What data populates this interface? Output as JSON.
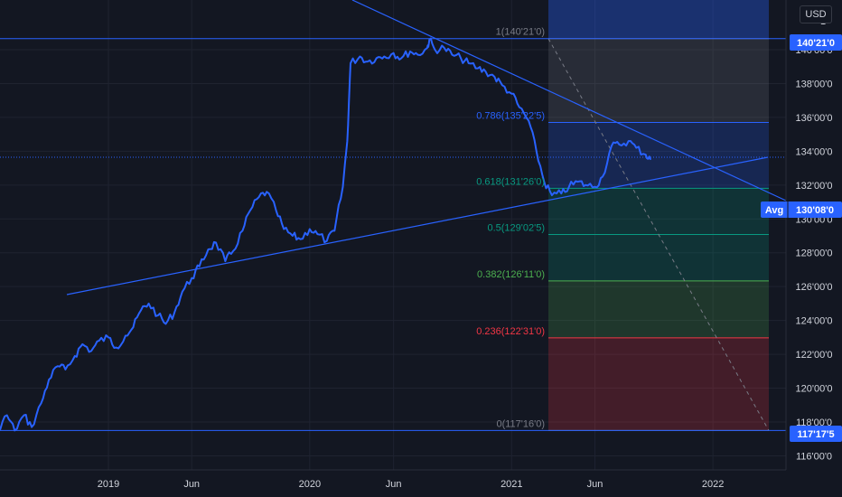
{
  "currency_button": "USD",
  "axis_top_partial": "1",
  "badges": {
    "top_price": "140'21'0",
    "avg_label": "Avg",
    "avg_price": "130'08'0",
    "bottom_price": "117'17'5"
  },
  "colors": {
    "background": "#131722",
    "price_line": "#2962ff",
    "trendline": "#2962ff",
    "badge": "#2962ff",
    "grid": "#2a2e39"
  },
  "chart_data": {
    "type": "line",
    "title": "",
    "xlabel": "",
    "ylabel": "",
    "x_ticks": [
      "2019",
      "Jun",
      "2020",
      "Jun",
      "2021",
      "Jun",
      "2022"
    ],
    "y_ticks": [
      "140'00'0",
      "138'00'0",
      "136'00'0",
      "134'00'0",
      "132'00'0",
      "130'00'0",
      "128'00'0",
      "126'00'0",
      "124'00'0",
      "122'00'0",
      "120'00'0",
      "118'00'0",
      "116'00'0"
    ],
    "ylim": [
      115.7,
      143.5
    ],
    "xlim": [
      "2018-01-01",
      "2022-05-01"
    ],
    "grid": true,
    "fib_levels": [
      {
        "label": "1(140'21'0)",
        "ratio": 1,
        "value": 140.656
      },
      {
        "label": "0.786(135'22'5)",
        "ratio": 0.786,
        "value": 135.7
      },
      {
        "label": "0.618(131'26'0)",
        "ratio": 0.618,
        "value": 131.81
      },
      {
        "label": "0.5(129'02'5)",
        "ratio": 0.5,
        "value": 129.08
      },
      {
        "label": "0.382(126'11'0)",
        "ratio": 0.382,
        "value": 126.34
      },
      {
        "label": "0.236(122'31'0)",
        "ratio": 0.236,
        "value": 122.97
      },
      {
        "label": "0(117'16'0)",
        "ratio": 0,
        "value": 117.5
      }
    ],
    "fib_colors": [
      "#787b86",
      "#2962ff",
      "#089981",
      "#089981",
      "#4caf50",
      "#f23645",
      "#787b86"
    ],
    "series": [
      {
        "x": [
          "2018-01-01",
          "2018-01-15",
          "2018-02-01",
          "2018-02-15",
          "2018-03-01",
          "2018-03-15",
          "2018-04-01",
          "2018-04-15",
          "2018-05-01",
          "2018-05-15",
          "2018-06-01",
          "2018-06-15",
          "2018-07-01",
          "2018-07-15",
          "2018-08-01",
          "2018-08-15",
          "2018-09-01",
          "2018-09-15",
          "2018-10-01",
          "2018-10-15",
          "2018-11-01",
          "2018-11-15",
          "2018-12-01",
          "2018-12-15",
          "2019-01-01",
          "2019-01-15",
          "2019-02-01",
          "2019-02-15",
          "2019-03-01",
          "2019-03-15",
          "2019-04-01",
          "2019-04-15",
          "2019-05-01",
          "2019-05-15",
          "2019-06-01",
          "2019-06-15",
          "2019-07-01",
          "2019-07-15",
          "2019-08-01",
          "2019-08-15",
          "2019-09-01",
          "2019-09-15",
          "2019-10-01",
          "2019-10-15",
          "2019-11-01",
          "2019-11-15",
          "2019-12-01",
          "2019-12-15",
          "2020-01-01",
          "2020-01-15",
          "2020-02-01",
          "2020-02-15",
          "2020-03-01",
          "2020-03-09",
          "2020-03-15",
          "2020-04-01",
          "2020-04-15",
          "2020-05-01",
          "2020-05-15",
          "2020-06-01",
          "2020-06-15",
          "2020-07-01",
          "2020-07-15",
          "2020-08-01",
          "2020-08-05",
          "2020-08-15",
          "2020-09-01",
          "2020-09-15",
          "2020-10-01",
          "2020-10-15",
          "2020-11-01",
          "2020-11-15",
          "2020-12-01",
          "2020-12-15",
          "2021-01-01",
          "2021-01-15",
          "2021-02-01",
          "2021-02-15",
          "2021-03-01",
          "2021-03-15",
          "2021-04-01",
          "2021-04-15",
          "2021-05-01",
          "2021-05-15",
          "2021-06-01",
          "2021-06-15",
          "2021-07-01",
          "2021-07-15",
          "2021-08-01",
          "2021-08-15",
          "2021-09-01",
          "2021-09-10"
        ],
        "values": [
          119.9,
          120.2,
          119.7,
          120.4,
          119.9,
          120.3,
          119.6,
          120.5,
          119.4,
          118.9,
          118.3,
          117.6,
          118.4,
          117.5,
          118.4,
          117.7,
          119.1,
          120.5,
          121.3,
          121.1,
          121.9,
          122.6,
          122.2,
          122.8,
          123.0,
          122.4,
          123.1,
          123.6,
          124.6,
          125.0,
          124.3,
          123.8,
          124.5,
          125.7,
          126.5,
          127.2,
          128.2,
          128.6,
          127.5,
          128.1,
          129.3,
          130.5,
          131.3,
          131.6,
          130.5,
          129.4,
          129.0,
          128.8,
          129.4,
          129.1,
          128.7,
          129.3,
          131.9,
          134.6,
          139.2,
          139.6,
          139.3,
          139.5,
          139.6,
          139.8,
          139.5,
          139.9,
          139.7,
          140.1,
          140.6,
          140.0,
          140.1,
          139.7,
          139.5,
          139.2,
          138.9,
          138.7,
          138.4,
          137.9,
          137.4,
          136.6,
          135.8,
          134.0,
          132.2,
          131.4,
          131.5,
          131.9,
          132.2,
          132.0,
          131.9,
          132.5,
          134.3,
          134.4,
          134.6,
          134.2,
          133.8,
          133.5
        ]
      }
    ]
  }
}
